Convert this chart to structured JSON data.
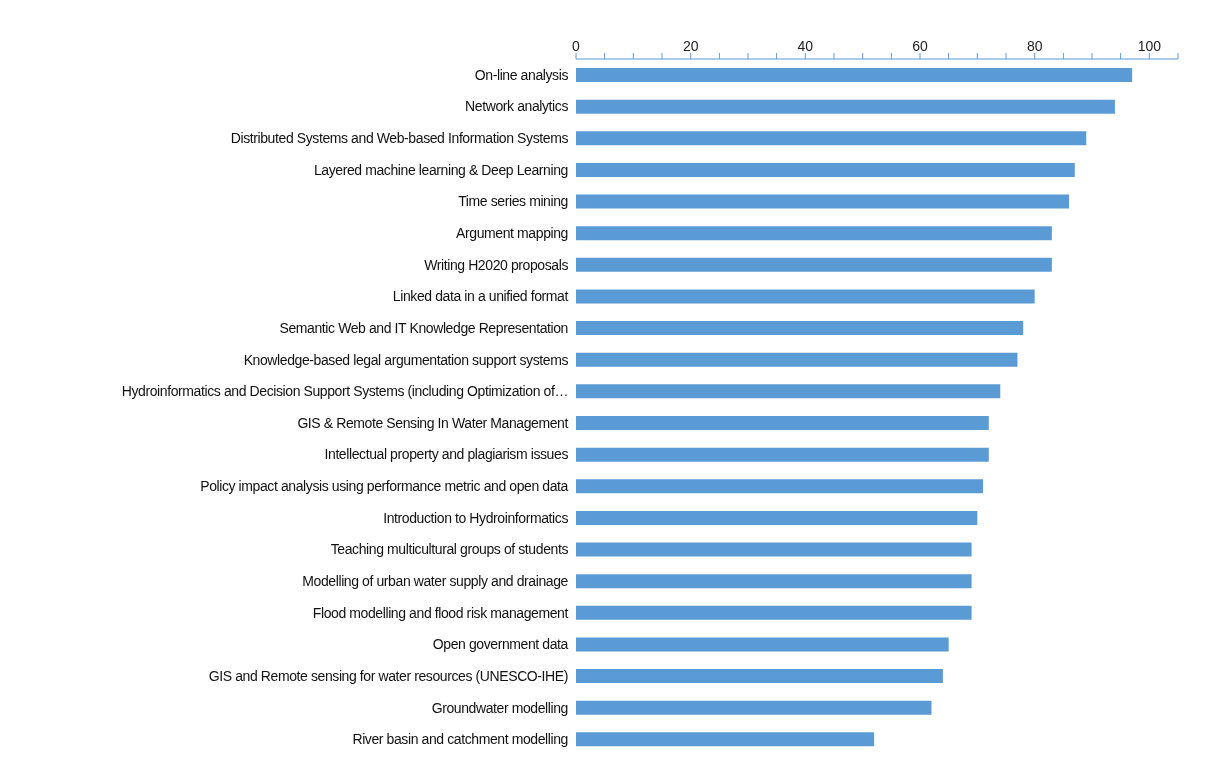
{
  "chart_data": {
    "type": "bar",
    "orientation": "horizontal",
    "categories": [
      "On-line analysis",
      "Network analytics",
      "Distributed Systems and Web-based Information Systems",
      "Layered machine learning & Deep Learning",
      "Time series mining",
      "Argument mapping",
      "Writing H2020 proposals",
      "Linked data in a unified format",
      "Semantic Web and IT Knowledge Representation",
      "Knowledge-based legal argumentation support systems",
      "Hydroinformatics and Decision Support Systems (including Optimization of…",
      "GIS & Remote Sensing In Water Management",
      "Intellectual property and plagiarism issues",
      "Policy impact analysis using performance metric and open data",
      "Introduction to Hydroinformatics",
      "Teaching multicultural groups of students",
      "Modelling of urban water supply and drainage",
      "Flood modelling and flood risk management",
      "Open government data",
      "GIS and Remote sensing for water resources (UNESCO-IHE)",
      "Groundwater modelling",
      "River basin and catchment modelling"
    ],
    "values": [
      97,
      94,
      89,
      87,
      86,
      83,
      83,
      80,
      78,
      77,
      74,
      72,
      72,
      71,
      70,
      69,
      69,
      69,
      65,
      64,
      62,
      52
    ],
    "color": "#5b9bd5",
    "xlim": [
      0,
      105
    ],
    "xticks": [
      0,
      {
        "value": 5,
        "label": null
      },
      {
        "value": 10,
        "label": null
      },
      {
        "value": 15,
        "label": null
      },
      20,
      {
        "value": 25,
        "label": null
      },
      {
        "value": 30,
        "label": null
      },
      {
        "value": 35,
        "label": null
      },
      40,
      {
        "value": 45,
        "label": null
      },
      {
        "value": 50,
        "label": null
      },
      {
        "value": 55,
        "label": null
      },
      60,
      {
        "value": 65,
        "label": null
      },
      {
        "value": 70,
        "label": null
      },
      {
        "value": 75,
        "label": null
      },
      80,
      {
        "value": 85,
        "label": null
      },
      {
        "value": 90,
        "label": null
      },
      {
        "value": 95,
        "label": null
      },
      100,
      {
        "value": 105,
        "label": null
      }
    ],
    "grid": false,
    "legend": false
  }
}
